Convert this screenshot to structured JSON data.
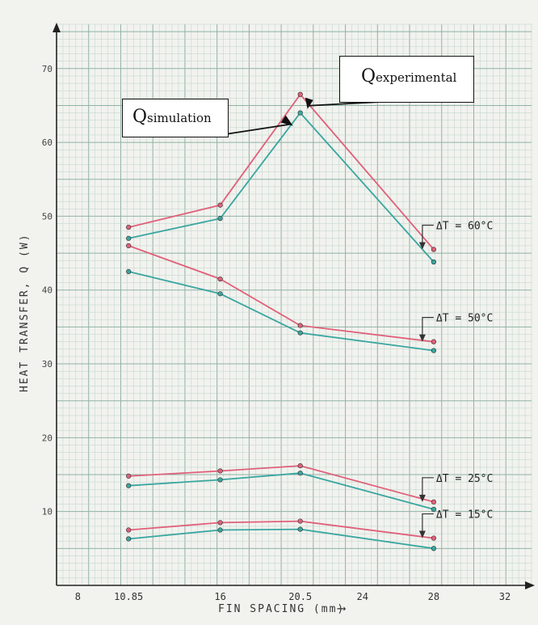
{
  "chart_data": {
    "type": "line",
    "xlabel": "FIN SPACING (mm)",
    "ylabel": "HEAT TRANSFER, Q (W)",
    "x_ticks": [
      "8",
      "10.85",
      "16",
      "20.5",
      "24",
      "28",
      "32"
    ],
    "y_ticks": [
      "10",
      "20",
      "30",
      "40",
      "50",
      "60",
      "70"
    ],
    "xlim": [
      6.8,
      33.5
    ],
    "ylim": [
      0,
      76
    ],
    "grid": true,
    "x": [
      10.85,
      16,
      20.5,
      28
    ],
    "series": [
      {
        "group": "ΔT = 60°C",
        "type": "experimental",
        "values": [
          48.5,
          51.5,
          66.5,
          45.5
        ]
      },
      {
        "group": "ΔT = 60°C",
        "type": "simulation",
        "values": [
          47.0,
          49.7,
          64.0,
          43.8
        ]
      },
      {
        "group": "ΔT = 50°C",
        "type": "experimental",
        "values": [
          46.0,
          41.5,
          35.2,
          33.0
        ]
      },
      {
        "group": "ΔT = 50°C",
        "type": "simulation",
        "values": [
          42.5,
          39.5,
          34.2,
          31.8
        ]
      },
      {
        "group": "ΔT = 25°C",
        "type": "experimental",
        "values": [
          14.8,
          15.5,
          16.2,
          11.3
        ]
      },
      {
        "group": "ΔT = 25°C",
        "type": "simulation",
        "values": [
          13.5,
          14.3,
          15.2,
          10.3
        ]
      },
      {
        "group": "ΔT = 15°C",
        "type": "experimental",
        "values": [
          7.5,
          8.5,
          8.7,
          6.4
        ]
      },
      {
        "group": "ΔT = 15°C",
        "type": "simulation",
        "values": [
          6.3,
          7.5,
          7.6,
          5.0
        ]
      }
    ],
    "annotations": [
      {
        "text": "ΔT = 60°C",
        "series": 0
      },
      {
        "text": "ΔT = 50°C",
        "series": 2
      },
      {
        "text": "ΔT = 25°C",
        "series": 4
      },
      {
        "text": "ΔT = 15°C",
        "series": 6
      }
    ],
    "callouts": {
      "simulation": {
        "q": "Q",
        "sub": "simulation"
      },
      "experimental": {
        "q": "Q",
        "sub": "experimental"
      }
    },
    "colors": {
      "experimental": "#e0607a",
      "simulation": "#3aa6a0",
      "grid_minor": "#bcd3c9",
      "grid_major": "#8fb3a6",
      "paper": "#f2f2ee"
    }
  }
}
